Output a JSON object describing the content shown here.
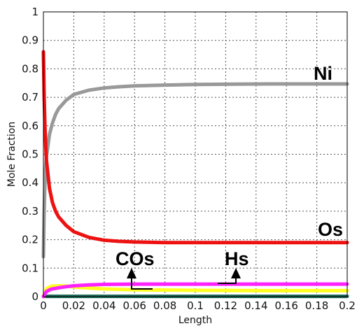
{
  "chart_data": {
    "type": "line",
    "title": "",
    "xlabel": "Length",
    "ylabel": "Mole Fraction",
    "xlim": [
      0,
      0.2
    ],
    "ylim": [
      0,
      1
    ],
    "grid": true,
    "x_ticks": [
      "0",
      "0.02",
      "0.04",
      "0.06",
      "0.08",
      "0.1",
      "0.12",
      "0.14",
      "0.16",
      "0.18",
      "0.2"
    ],
    "y_ticks": [
      "0",
      "0.1",
      "0.2",
      "0.3",
      "0.4",
      "0.5",
      "0.6",
      "0.7",
      "0.8",
      "0.9",
      "1"
    ],
    "series": [
      {
        "name": "Ni",
        "color": "#999999",
        "x": [
          0,
          0.0005,
          0.001,
          0.0015,
          0.002,
          0.003,
          0.004,
          0.006,
          0.008,
          0.01,
          0.015,
          0.02,
          0.03,
          0.04,
          0.05,
          0.06,
          0.08,
          0.1,
          0.12,
          0.15,
          0.2
        ],
        "y": [
          0.14,
          0.3,
          0.4,
          0.46,
          0.49,
          0.53,
          0.57,
          0.61,
          0.64,
          0.66,
          0.69,
          0.71,
          0.725,
          0.733,
          0.737,
          0.74,
          0.743,
          0.745,
          0.746,
          0.747,
          0.747
        ]
      },
      {
        "name": "Os",
        "color": "#ee1111",
        "x": [
          0,
          0.0005,
          0.001,
          0.0015,
          0.002,
          0.003,
          0.004,
          0.006,
          0.008,
          0.01,
          0.015,
          0.02,
          0.03,
          0.04,
          0.05,
          0.06,
          0.08,
          0.1,
          0.12,
          0.15,
          0.2
        ],
        "y": [
          0.86,
          0.7,
          0.6,
          0.53,
          0.48,
          0.43,
          0.38,
          0.33,
          0.3,
          0.28,
          0.25,
          0.228,
          0.208,
          0.198,
          0.194,
          0.192,
          0.19,
          0.19,
          0.19,
          0.19,
          0.19
        ]
      },
      {
        "name": "COs",
        "color": "#ffff22",
        "x": [
          0,
          0.002,
          0.005,
          0.01,
          0.015,
          0.02,
          0.03,
          0.04,
          0.06,
          0.1,
          0.15,
          0.2
        ],
        "y": [
          0.0,
          0.028,
          0.036,
          0.038,
          0.037,
          0.034,
          0.03,
          0.027,
          0.024,
          0.022,
          0.021,
          0.021
        ]
      },
      {
        "name": "Hs",
        "color": "#ff22ff",
        "x": [
          0,
          0.002,
          0.005,
          0.01,
          0.015,
          0.02,
          0.03,
          0.04,
          0.06,
          0.1,
          0.15,
          0.2
        ],
        "y": [
          0.0,
          0.018,
          0.026,
          0.031,
          0.035,
          0.038,
          0.041,
          0.043,
          0.044,
          0.044,
          0.044,
          0.044
        ]
      },
      {
        "name": "",
        "color": "#1a6655",
        "x": [
          0,
          0.2
        ],
        "y": [
          0.001,
          0.001
        ]
      }
    ],
    "annotations": [
      "Ni",
      "Os",
      "COs",
      "Hs"
    ]
  }
}
